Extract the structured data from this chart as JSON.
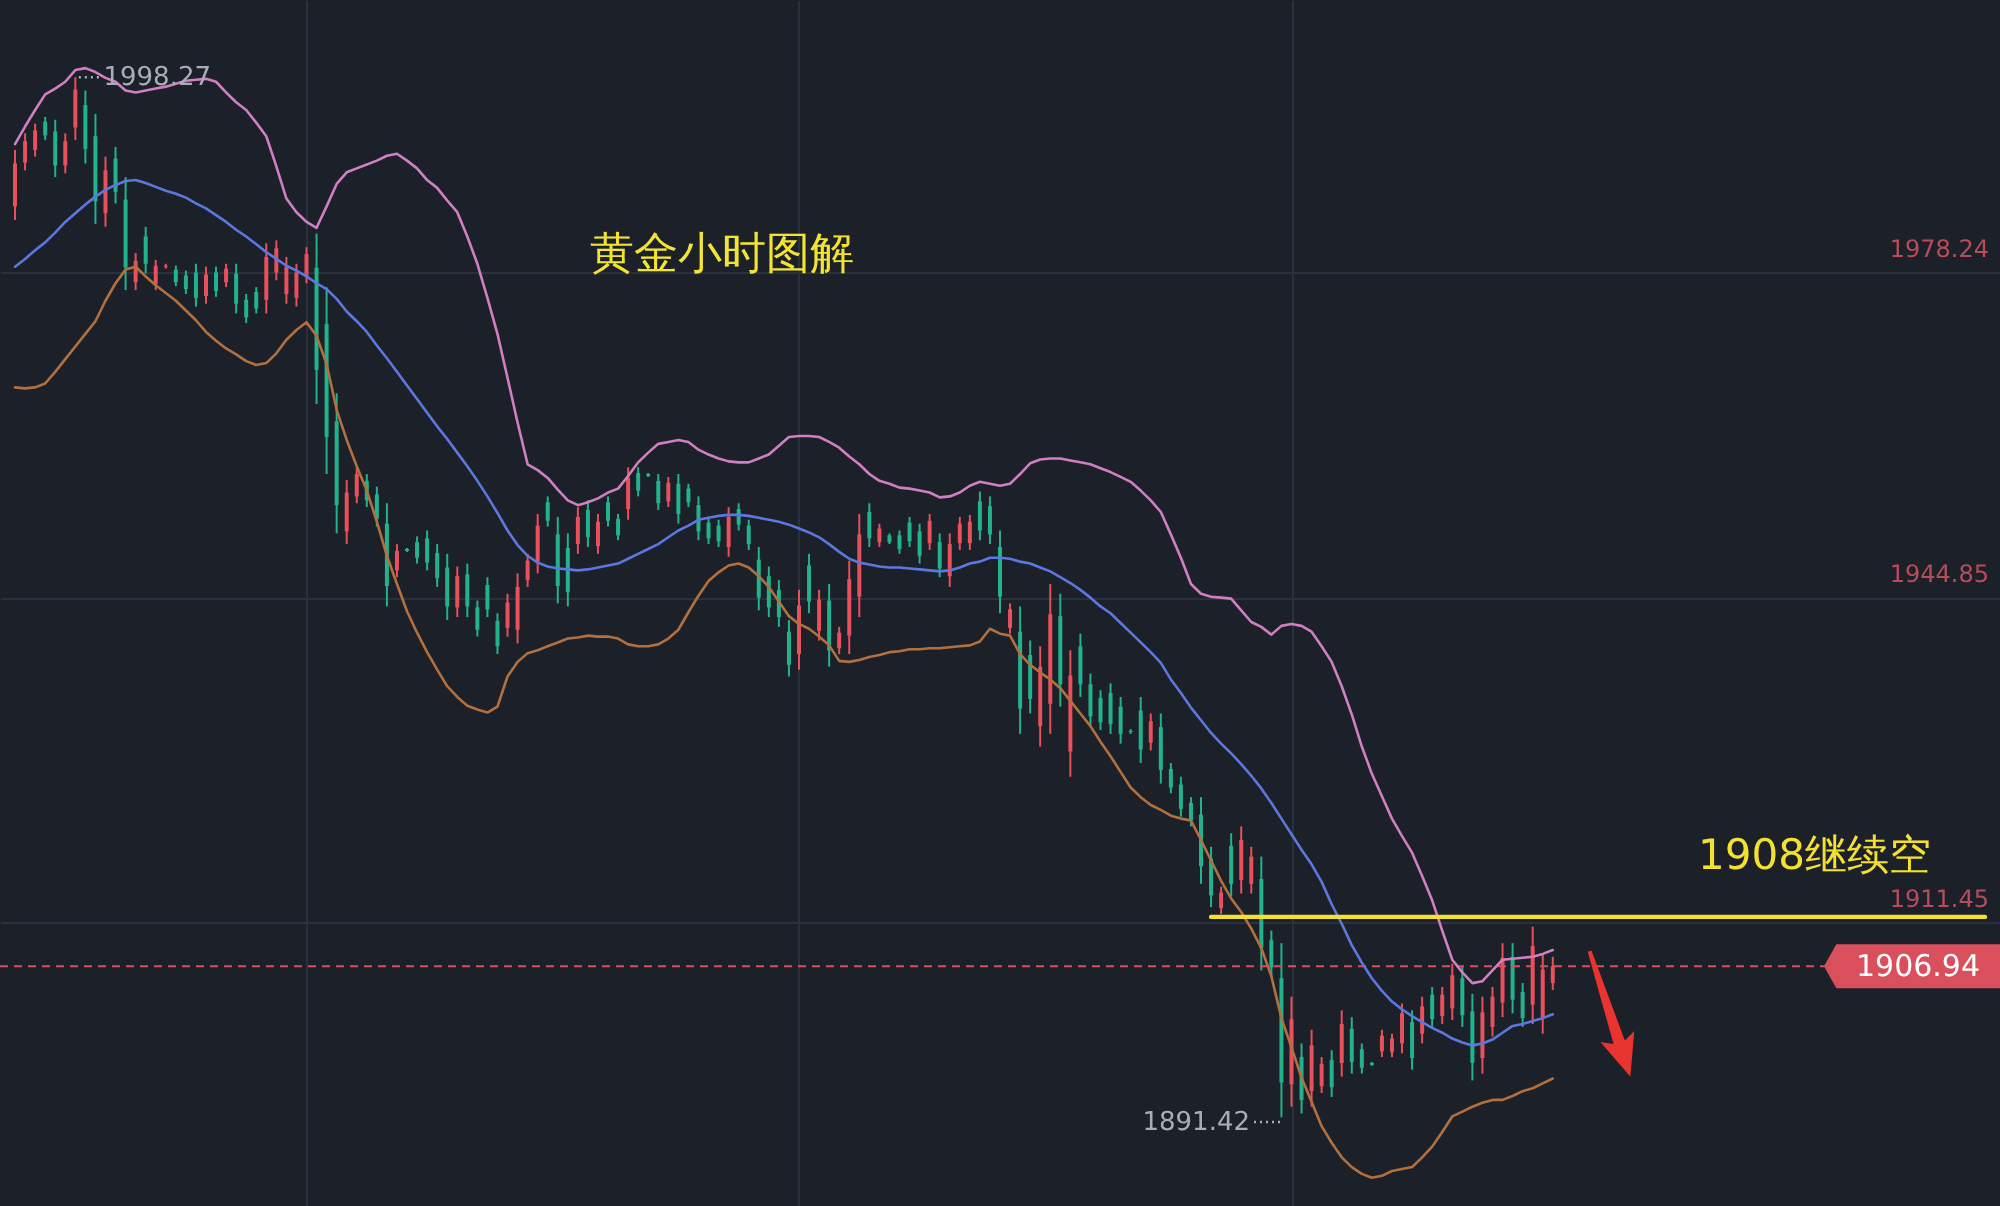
{
  "chart_data": {
    "type": "candlestick",
    "title": "黄金小时图解",
    "categories": [
      null,
      null,
      null,
      null,
      null,
      null,
      null,
      null,
      null,
      null,
      null,
      null,
      null,
      null,
      null,
      null,
      null,
      null,
      null,
      null,
      null,
      null,
      null,
      null,
      null,
      null,
      null,
      null,
      null,
      null,
      null,
      null,
      null,
      null,
      null,
      null,
      null,
      null,
      null,
      null,
      null,
      null,
      null,
      null,
      null,
      null,
      null,
      null,
      null,
      null,
      null,
      null,
      null,
      null,
      null,
      null,
      null,
      null,
      null,
      null,
      null,
      null,
      null,
      null,
      null,
      null,
      null,
      null,
      null,
      null,
      null,
      null,
      null,
      null,
      null,
      null,
      null,
      null,
      null,
      null,
      null,
      null,
      null,
      null,
      null,
      null,
      null,
      null,
      null,
      null,
      null,
      null,
      null,
      null,
      null,
      null,
      null,
      null,
      null,
      null,
      null,
      null,
      null,
      null,
      null,
      null,
      null,
      null,
      null,
      null,
      null,
      null,
      null,
      null,
      null,
      null,
      null,
      null,
      null,
      null,
      null,
      null,
      null,
      null,
      null,
      null,
      null,
      null,
      null,
      null,
      null,
      null,
      null,
      null,
      null,
      null,
      null,
      null,
      null,
      null,
      null,
      null,
      null,
      null,
      null,
      null,
      null,
      null,
      null,
      null,
      null,
      null,
      null,
      null,
      null,
      null,
      null,
      null,
      null,
      null,
      null,
      null,
      null,
      null,
      null,
      null,
      null,
      null,
      null,
      null,
      null,
      null,
      null,
      null,
      null,
      null,
      null,
      null,
      null,
      null,
      null,
      null,
      null,
      null,
      null,
      null,
      null,
      null,
      null,
      null,
      null,
      null,
      null,
      null,
      null,
      null,
      null
    ],
    "ohlc": [
      [
        1985.0,
        1990.8,
        1983.6,
        1989.4
      ],
      [
        1989.5,
        1992.5,
        1988.7,
        1991.7
      ],
      [
        1990.8,
        1993.5,
        1990.1,
        1992.8
      ],
      [
        1993.7,
        1994.2,
        1991.8,
        1992.3
      ],
      [
        1992.7,
        1993.9,
        1988.0,
        1989.2
      ],
      [
        1989.2,
        1992.5,
        1988.4,
        1991.7
      ],
      [
        1993.1,
        1998.27,
        1991.8,
        1997.0
      ],
      [
        1995.4,
        1996.9,
        1989.4,
        1990.9
      ],
      [
        1992.2,
        1994.5,
        1983.2,
        1985.5
      ],
      [
        1984.3,
        1990.1,
        1982.9,
        1988.7
      ],
      [
        1989.9,
        1991.1,
        1985.3,
        1986.5
      ],
      [
        1985.7,
        1988.0,
        1976.4,
        1978.7
      ],
      [
        1977.2,
        1980.2,
        1976.4,
        1979.4
      ],
      [
        1981.9,
        1982.9,
        1978.1,
        1979.1
      ],
      [
        1977.0,
        1979.5,
        1976.4,
        1978.9
      ],
      [
        1978.8,
        1979.1,
        1978.6,
        1978.9
      ],
      [
        1978.5,
        1978.9,
        1976.8,
        1977.2
      ],
      [
        1977.9,
        1978.4,
        1976.0,
        1976.5
      ],
      [
        1978.2,
        1979.1,
        1974.7,
        1975.6
      ],
      [
        1975.8,
        1978.8,
        1975.0,
        1978.0
      ],
      [
        1978.2,
        1978.8,
        1975.7,
        1976.3
      ],
      [
        1977.2,
        1979.1,
        1976.7,
        1978.6
      ],
      [
        1978.1,
        1979.1,
        1974.0,
        1975.0
      ],
      [
        1975.4,
        1976.0,
        1973.0,
        1973.6
      ],
      [
        1976.2,
        1976.7,
        1974.0,
        1974.5
      ],
      [
        1975.4,
        1981.2,
        1974.0,
        1979.8
      ],
      [
        1978.2,
        1981.5,
        1977.4,
        1980.7
      ],
      [
        1976.0,
        1979.8,
        1975.0,
        1978.8
      ],
      [
        1975.6,
        1979.1,
        1974.7,
        1978.2
      ],
      [
        1977.8,
        1980.8,
        1977.1,
        1980.1
      ],
      [
        1978.7,
        1982.2,
        1964.7,
        1968.2
      ],
      [
        1972.9,
        1976.7,
        1957.5,
        1961.3
      ],
      [
        1962.9,
        1965.8,
        1951.4,
        1954.3
      ],
      [
        1951.6,
        1956.9,
        1950.3,
        1955.6
      ],
      [
        1955.2,
        1958.2,
        1954.5,
        1957.5
      ],
      [
        1956.8,
        1957.5,
        1954.1,
        1954.8
      ],
      [
        1955.4,
        1956.2,
        1952.1,
        1952.9
      ],
      [
        1952.4,
        1954.5,
        1943.9,
        1946.0
      ],
      [
        1947.6,
        1950.3,
        1946.9,
        1949.6
      ],
      [
        1949.8,
        1949.9,
        1949.5,
        1949.6
      ],
      [
        1950.5,
        1951.1,
        1948.3,
        1948.9
      ],
      [
        1950.9,
        1951.7,
        1947.6,
        1948.4
      ],
      [
        1949.4,
        1950.3,
        1945.9,
        1946.8
      ],
      [
        1947.9,
        1949.3,
        1942.5,
        1943.9
      ],
      [
        1943.8,
        1948.0,
        1942.8,
        1947.0
      ],
      [
        1947.2,
        1948.3,
        1942.8,
        1943.9
      ],
      [
        1943.8,
        1944.5,
        1940.8,
        1941.5
      ],
      [
        1946.1,
        1946.9,
        1942.8,
        1943.6
      ],
      [
        1942.4,
        1943.2,
        1939.0,
        1939.8
      ],
      [
        1941.7,
        1945.2,
        1940.8,
        1944.3
      ],
      [
        1941.5,
        1947.3,
        1940.1,
        1945.9
      ],
      [
        1946.6,
        1949.3,
        1945.9,
        1948.6
      ],
      [
        1948.5,
        1953.4,
        1947.3,
        1952.2
      ],
      [
        1954.6,
        1955.2,
        1952.1,
        1952.7
      ],
      [
        1951.3,
        1953.1,
        1944.2,
        1946.0
      ],
      [
        1949.9,
        1951.4,
        1943.9,
        1945.4
      ],
      [
        1950.3,
        1954.1,
        1949.3,
        1953.1
      ],
      [
        1953.8,
        1954.8,
        1950.0,
        1951.0
      ],
      [
        1950.1,
        1953.4,
        1949.3,
        1952.6
      ],
      [
        1954.6,
        1955.2,
        1952.1,
        1952.7
      ],
      [
        1952.9,
        1953.4,
        1950.7,
        1951.2
      ],
      [
        1953.9,
        1958.2,
        1952.8,
        1957.1
      ],
      [
        1957.6,
        1958.2,
        1955.2,
        1955.8
      ],
      [
        1957.5,
        1957.6,
        1957.2,
        1957.3
      ],
      [
        1956.8,
        1957.5,
        1953.8,
        1954.5
      ],
      [
        1954.7,
        1957.2,
        1954.1,
        1956.6
      ],
      [
        1956.5,
        1957.5,
        1952.4,
        1953.4
      ],
      [
        1956.0,
        1956.5,
        1954.1,
        1954.6
      ],
      [
        1954.3,
        1955.2,
        1950.7,
        1951.6
      ],
      [
        1952.5,
        1953.1,
        1950.3,
        1950.9
      ],
      [
        1952.2,
        1952.8,
        1950.0,
        1950.6
      ],
      [
        1950.0,
        1954.1,
        1949.0,
        1953.1
      ],
      [
        1953.9,
        1954.5,
        1951.7,
        1952.3
      ],
      [
        1952.2,
        1952.8,
        1949.7,
        1950.3
      ],
      [
        1948.7,
        1950.0,
        1943.5,
        1944.8
      ],
      [
        1947.0,
        1948.0,
        1942.8,
        1943.8
      ],
      [
        1945.6,
        1946.6,
        1941.8,
        1942.8
      ],
      [
        1941.3,
        1942.5,
        1936.7,
        1937.9
      ],
      [
        1939.0,
        1945.6,
        1937.4,
        1944.0
      ],
      [
        1948.1,
        1949.3,
        1943.2,
        1944.4
      ],
      [
        1941.4,
        1945.6,
        1940.4,
        1944.6
      ],
      [
        1944.5,
        1946.2,
        1937.7,
        1939.4
      ],
      [
        1939.6,
        1941.8,
        1939.0,
        1941.2
      ],
      [
        1940.9,
        1948.6,
        1939.0,
        1946.7
      ],
      [
        1944.9,
        1953.4,
        1942.8,
        1951.3
      ],
      [
        1953.6,
        1954.5,
        1950.0,
        1950.9
      ],
      [
        1950.5,
        1952.4,
        1950.0,
        1951.9
      ],
      [
        1951.2,
        1951.4,
        1950.3,
        1950.5
      ],
      [
        1951.2,
        1951.7,
        1949.3,
        1949.8
      ],
      [
        1952.5,
        1953.1,
        1950.0,
        1950.6
      ],
      [
        1951.6,
        1952.4,
        1948.3,
        1949.1
      ],
      [
        1950.4,
        1953.4,
        1949.7,
        1952.7
      ],
      [
        1950.5,
        1951.4,
        1946.9,
        1947.8
      ],
      [
        1947.0,
        1951.4,
        1945.9,
        1950.3
      ],
      [
        1950.4,
        1953.1,
        1949.7,
        1952.4
      ],
      [
        1950.4,
        1953.3,
        1949.7,
        1952.6
      ],
      [
        1954.7,
        1955.7,
        1950.7,
        1951.7
      ],
      [
        1954.2,
        1955.2,
        1950.3,
        1951.3
      ],
      [
        1950.0,
        1951.7,
        1943.2,
        1944.9
      ],
      [
        1941.7,
        1944.2,
        1941.1,
        1943.6
      ],
      [
        1941.3,
        1943.9,
        1930.8,
        1933.4
      ],
      [
        1938.9,
        1940.4,
        1932.9,
        1934.4
      ],
      [
        1931.6,
        1939.8,
        1929.5,
        1937.7
      ],
      [
        1933.9,
        1946.2,
        1930.8,
        1943.1
      ],
      [
        1942.9,
        1945.2,
        1933.6,
        1935.9
      ],
      [
        1929.0,
        1939.4,
        1926.4,
        1936.8
      ],
      [
        1939.8,
        1941.1,
        1934.6,
        1935.9
      ],
      [
        1935.9,
        1937.0,
        1931.5,
        1932.6
      ],
      [
        1934.5,
        1935.3,
        1931.2,
        1932.0
      ],
      [
        1935.0,
        1936.0,
        1930.8,
        1931.8
      ],
      [
        1933.6,
        1934.6,
        1929.8,
        1930.8
      ],
      [
        1931.1,
        1931.3,
        1930.8,
        1931.0
      ],
      [
        1933.2,
        1934.6,
        1927.8,
        1929.2
      ],
      [
        1929.9,
        1932.9,
        1929.1,
        1932.1
      ],
      [
        1931.5,
        1932.9,
        1925.7,
        1927.1
      ],
      [
        1927.2,
        1927.8,
        1924.7,
        1925.3
      ],
      [
        1925.6,
        1926.4,
        1922.3,
        1923.1
      ],
      [
        1923.7,
        1924.3,
        1921.3,
        1921.9
      ],
      [
        1922.5,
        1924.3,
        1915.4,
        1917.2
      ],
      [
        1918.0,
        1919.2,
        1913.0,
        1914.2
      ],
      [
        1912.9,
        1915.1,
        1912.3,
        1914.5
      ],
      [
        1919.3,
        1920.6,
        1914.1,
        1915.4
      ],
      [
        1915.8,
        1921.3,
        1914.4,
        1919.9
      ],
      [
        1915.4,
        1919.2,
        1914.4,
        1918.2
      ],
      [
        1915.9,
        1918.2,
        1906.5,
        1908.8
      ],
      [
        1909.6,
        1910.6,
        1905.8,
        1906.8
      ],
      [
        1905.7,
        1909.3,
        1891.42,
        1895.0
      ],
      [
        1894.8,
        1903.8,
        1892.5,
        1901.5
      ],
      [
        1897.6,
        1899.0,
        1891.8,
        1893.2
      ],
      [
        1894.1,
        1900.4,
        1892.5,
        1898.8
      ],
      [
        1894.6,
        1897.6,
        1893.9,
        1896.9
      ],
      [
        1897.3,
        1898.3,
        1893.5,
        1894.5
      ],
      [
        1897.0,
        1902.4,
        1895.6,
        1901.0
      ],
      [
        1900.5,
        1901.7,
        1895.9,
        1897.1
      ],
      [
        1898.4,
        1899.0,
        1895.9,
        1896.5
      ],
      [
        1897.0,
        1897.1,
        1896.7,
        1896.8
      ],
      [
        1898.2,
        1900.4,
        1897.6,
        1899.8
      ],
      [
        1898.1,
        1900.0,
        1897.6,
        1899.5
      ],
      [
        1899.0,
        1903.1,
        1898.0,
        1902.1
      ],
      [
        1901.2,
        1902.4,
        1896.3,
        1897.5
      ],
      [
        1900.0,
        1903.8,
        1899.0,
        1902.8
      ],
      [
        1904.0,
        1904.8,
        1900.7,
        1901.5
      ],
      [
        1901.8,
        1904.8,
        1901.0,
        1904.0
      ],
      [
        1902.6,
        1907.2,
        1901.4,
        1906.0
      ],
      [
        1905.7,
        1906.9,
        1900.7,
        1901.9
      ],
      [
        1902.3,
        1904.1,
        1895.2,
        1897.0
      ],
      [
        1897.5,
        1903.8,
        1895.9,
        1902.2
      ],
      [
        1900.7,
        1904.8,
        1899.7,
        1903.8
      ],
      [
        1903.2,
        1909.3,
        1901.7,
        1907.8
      ],
      [
        1907.9,
        1909.3,
        1902.1,
        1903.5
      ],
      [
        1904.3,
        1905.2,
        1900.7,
        1901.6
      ],
      [
        1903.0,
        1911.0,
        1901.0,
        1909.0
      ],
      [
        1901.6,
        1908.2,
        1900.0,
        1906.6
      ],
      [
        1905.2,
        1907.9,
        1904.5,
        1906.94
      ],
      null,
      null,
      null,
      null,
      null,
      null,
      null,
      null,
      null,
      null,
      null,
      null,
      null,
      null,
      null,
      null,
      null,
      null,
      null,
      null,
      null,
      null,
      null,
      null,
      null,
      null,
      null,
      null,
      null,
      null,
      null,
      null,
      null,
      null,
      null,
      null,
      null,
      null,
      null,
      null,
      null,
      null,
      null
    ],
    "colors": [
      "#e8505b",
      "#e8505b",
      "#e8505b",
      "#22b38d",
      "#22b38d",
      "#e8505b",
      "#e8505b",
      "#22b38d",
      "#22b38d",
      "#e8505b",
      "#22b38d",
      "#22b38d",
      "#e8505b",
      "#22b38d",
      "#e8505b",
      "#e8505b",
      "#22b38d",
      "#22b38d",
      "#22b38d",
      "#e8505b",
      "#22b38d",
      "#e8505b",
      "#22b38d",
      "#22b38d",
      "#22b38d",
      "#e8505b",
      "#e8505b",
      "#e8505b",
      "#e8505b",
      "#e8505b",
      "#22b38d",
      "#22b38d",
      "#22b38d",
      "#e8505b",
      "#e8505b",
      "#22b38d",
      "#22b38d",
      "#22b38d",
      "#e8505b",
      "#22b38d",
      "#22b38d",
      "#22b38d",
      "#22b38d",
      "#22b38d",
      "#e8505b",
      "#22b38d",
      "#22b38d",
      "#22b38d",
      "#22b38d",
      "#e8505b",
      "#e8505b",
      "#e8505b",
      "#e8505b",
      "#22b38d",
      "#22b38d",
      "#22b38d",
      "#e8505b",
      "#22b38d",
      "#e8505b",
      "#22b38d",
      "#22b38d",
      "#e8505b",
      "#22b38d",
      "#22b38d",
      "#22b38d",
      "#e8505b",
      "#22b38d",
      "#22b38d",
      "#22b38d",
      "#22b38d",
      "#22b38d",
      "#e8505b",
      "#22b38d",
      "#22b38d",
      "#22b38d",
      "#22b38d",
      "#22b38d",
      "#22b38d",
      "#e8505b",
      "#22b38d",
      "#e8505b",
      "#22b38d",
      "#e8505b",
      "#e8505b",
      "#e8505b",
      "#22b38d",
      "#e8505b",
      "#22b38d",
      "#22b38d",
      "#22b38d",
      "#22b38d",
      "#e8505b",
      "#22b38d",
      "#e8505b",
      "#e8505b",
      "#e8505b",
      "#22b38d",
      "#22b38d",
      "#22b38d",
      "#e8505b",
      "#22b38d",
      "#22b38d",
      "#e8505b",
      "#e8505b",
      "#22b38d",
      "#e8505b",
      "#22b38d",
      "#22b38d",
      "#22b38d",
      "#22b38d",
      "#22b38d",
      "#22b38d",
      "#22b38d",
      "#e8505b",
      "#22b38d",
      "#22b38d",
      "#22b38d",
      "#22b38d",
      "#22b38d",
      "#22b38d",
      "#e8505b",
      "#22b38d",
      "#e8505b",
      "#e8505b",
      "#22b38d",
      "#22b38d",
      "#22b38d",
      "#e8505b",
      "#22b38d",
      "#e8505b",
      "#e8505b",
      "#22b38d",
      "#e8505b",
      "#22b38d",
      "#22b38d",
      "#22b38d",
      "#e8505b",
      "#e8505b",
      "#e8505b",
      "#22b38d",
      "#e8505b",
      "#22b38d",
      "#e8505b",
      "#e8505b",
      "#22b38d",
      "#22b38d",
      "#e8505b",
      "#e8505b",
      "#e8505b",
      "#22b38d",
      "#22b38d",
      "#e8505b",
      "#e8505b",
      "#e8505b",
      null,
      null,
      null,
      null,
      null,
      null,
      null,
      null,
      null,
      null,
      null,
      null,
      null,
      null,
      null,
      null,
      null,
      null,
      null,
      null,
      null,
      null,
      null,
      null,
      null,
      null,
      null,
      null,
      null,
      null,
      null,
      null,
      null,
      null,
      null,
      null,
      null,
      null,
      null,
      null,
      null,
      null,
      null
    ],
    "series": [
      {
        "type": "line",
        "color": "#d07fc2",
        "values": [
          1991.4,
          1993.2,
          1994.9,
          1996.5,
          1997.1,
          1997.8,
          1999.0,
          1999.2,
          1998.8,
          1998.2,
          1997.8,
          1996.9,
          1996.7,
          1996.9,
          1997.1,
          1997.3,
          1997.6,
          1997.9,
          1998.0,
          1998.1,
          1997.8,
          1996.7,
          1995.7,
          1994.9,
          1993.6,
          1992.2,
          1989.1,
          1985.8,
          1984.4,
          1983.4,
          1982.8,
          1985.0,
          1987.3,
          1988.5,
          1988.9,
          1989.3,
          1989.7,
          1990.2,
          1990.4,
          1989.7,
          1988.9,
          1987.7,
          1986.9,
          1985.6,
          1984.4,
          1981.9,
          1979.1,
          1975.6,
          1971.9,
          1967.4,
          1962.8,
          1958.5,
          1957.9,
          1957.1,
          1955.9,
          1954.8,
          1954.3,
          1954.6,
          1955.0,
          1955.6,
          1956.0,
          1957.3,
          1958.7,
          1959.7,
          1960.6,
          1960.8,
          1961.0,
          1960.8,
          1960.0,
          1959.5,
          1959.1,
          1958.8,
          1958.7,
          1958.7,
          1959.1,
          1959.5,
          1960.4,
          1961.3,
          1961.4,
          1961.4,
          1961.3,
          1960.8,
          1960.2,
          1959.3,
          1958.5,
          1957.5,
          1956.8,
          1956.5,
          1956.1,
          1956.0,
          1955.8,
          1955.6,
          1955.1,
          1955.2,
          1955.6,
          1956.3,
          1956.7,
          1956.5,
          1956.3,
          1956.5,
          1957.5,
          1958.6,
          1959.0,
          1959.1,
          1959.1,
          1958.9,
          1958.7,
          1958.5,
          1958.1,
          1957.7,
          1957.2,
          1956.7,
          1955.8,
          1954.8,
          1953.6,
          1951.3,
          1948.9,
          1946.2,
          1945.2,
          1944.9,
          1944.8,
          1944.7,
          1943.5,
          1942.3,
          1941.8,
          1941.0,
          1941.9,
          1942.1,
          1941.9,
          1941.3,
          1939.8,
          1938.2,
          1935.7,
          1932.8,
          1929.5,
          1926.7,
          1924.4,
          1922.1,
          1920.3,
          1918.6,
          1916.2,
          1913.7,
          1910.6,
          1907.6,
          1906.3,
          1905.2,
          1905.4,
          1906.5,
          1907.6,
          1907.7,
          1907.8,
          1907.9,
          1908.2,
          1908.6,
          null,
          null,
          null,
          null,
          null,
          null,
          null,
          null,
          null,
          null,
          null,
          null,
          null,
          null,
          null,
          null,
          null,
          null,
          null,
          null,
          null,
          null,
          null,
          null,
          null,
          null,
          null,
          null,
          null,
          null,
          null,
          null,
          null,
          null,
          null,
          null,
          null,
          null,
          null,
          null,
          null,
          null,
          null
        ]
      },
      {
        "type": "line",
        "color": "#5b78e0",
        "values": [
          1978.8,
          1979.6,
          1980.5,
          1981.3,
          1982.3,
          1983.4,
          1984.3,
          1985.2,
          1986.0,
          1986.7,
          1987.2,
          1987.6,
          1987.7,
          1987.4,
          1987.0,
          1986.6,
          1986.3,
          1985.9,
          1985.3,
          1984.8,
          1984.1,
          1983.4,
          1982.6,
          1981.9,
          1981.1,
          1980.3,
          1979.6,
          1978.9,
          1978.4,
          1977.8,
          1977.1,
          1976.5,
          1975.5,
          1974.2,
          1973.2,
          1972.1,
          1970.7,
          1969.4,
          1968.0,
          1966.6,
          1965.2,
          1963.8,
          1962.4,
          1961.1,
          1959.7,
          1958.3,
          1956.8,
          1955.2,
          1953.5,
          1951.7,
          1950.2,
          1949.1,
          1948.4,
          1948.0,
          1947.8,
          1947.7,
          1947.6,
          1947.7,
          1947.9,
          1948.1,
          1948.3,
          1948.8,
          1949.3,
          1949.8,
          1950.3,
          1951.0,
          1951.7,
          1952.2,
          1952.8,
          1953.0,
          1953.2,
          1953.3,
          1953.3,
          1953.2,
          1953.0,
          1952.8,
          1952.6,
          1952.3,
          1951.9,
          1951.5,
          1951.0,
          1950.3,
          1949.5,
          1948.8,
          1948.4,
          1948.2,
          1948.0,
          1947.9,
          1947.9,
          1947.8,
          1947.7,
          1947.6,
          1947.5,
          1947.6,
          1947.9,
          1948.3,
          1948.5,
          1948.9,
          1948.9,
          1948.8,
          1948.5,
          1948.3,
          1947.9,
          1947.5,
          1946.9,
          1946.3,
          1945.6,
          1944.8,
          1943.9,
          1943.2,
          1942.2,
          1941.2,
          1940.2,
          1939.2,
          1938.1,
          1936.4,
          1935.0,
          1933.5,
          1932.2,
          1930.9,
          1929.8,
          1928.8,
          1927.7,
          1926.5,
          1925.2,
          1923.7,
          1922.1,
          1920.5,
          1918.9,
          1917.4,
          1915.6,
          1913.3,
          1911.3,
          1909.1,
          1907.3,
          1905.7,
          1904.4,
          1903.3,
          1902.5,
          1901.8,
          1901.2,
          1900.6,
          1900.1,
          1899.5,
          1899.1,
          1898.8,
          1899.0,
          1899.4,
          1900.1,
          1900.8,
          1901.0,
          1901.3,
          1901.6,
          1902.0,
          null,
          null,
          null,
          null,
          null,
          null,
          null,
          null,
          null,
          null,
          null,
          null,
          null,
          null,
          null,
          null,
          null,
          null,
          null,
          null,
          null,
          null,
          null,
          null,
          null,
          null,
          null,
          null,
          null,
          null,
          null,
          null,
          null,
          null,
          null,
          null,
          null,
          null,
          null,
          null,
          null,
          null,
          null
        ]
      },
      {
        "type": "line",
        "color": "#b2703f",
        "values": [
          1966.4,
          1966.3,
          1966.4,
          1966.8,
          1968.0,
          1969.3,
          1970.6,
          1971.9,
          1973.2,
          1975.3,
          1977.1,
          1978.5,
          1978.8,
          1977.8,
          1976.9,
          1976.1,
          1975.3,
          1974.3,
          1973.3,
          1972.1,
          1971.2,
          1970.4,
          1969.8,
          1969.1,
          1968.7,
          1968.9,
          1969.9,
          1971.3,
          1972.3,
          1973.1,
          1971.7,
          1968.8,
          1964.1,
          1961.0,
          1958.3,
          1955.8,
          1952.6,
          1949.1,
          1946.2,
          1943.4,
          1941.2,
          1939.2,
          1937.4,
          1935.7,
          1934.6,
          1933.7,
          1933.3,
          1933.0,
          1933.6,
          1936.7,
          1938.2,
          1939.1,
          1939.4,
          1939.8,
          1940.2,
          1940.6,
          1940.7,
          1940.9,
          1940.8,
          1940.8,
          1940.6,
          1940.0,
          1939.8,
          1939.8,
          1940.0,
          1940.6,
          1941.5,
          1943.3,
          1945.0,
          1946.5,
          1947.4,
          1948.1,
          1948.3,
          1947.9,
          1947.0,
          1945.9,
          1944.4,
          1942.9,
          1942.1,
          1941.6,
          1940.8,
          1939.9,
          1938.3,
          1938.2,
          1938.4,
          1938.7,
          1938.9,
          1939.2,
          1939.3,
          1939.5,
          1939.5,
          1939.6,
          1939.6,
          1939.7,
          1939.8,
          1939.9,
          1940.3,
          1941.6,
          1941.1,
          1940.9,
          1939.0,
          1937.9,
          1937.1,
          1936.4,
          1935.5,
          1934.2,
          1932.9,
          1931.6,
          1930.0,
          1928.5,
          1926.9,
          1925.3,
          1924.3,
          1923.5,
          1923.0,
          1922.4,
          1922.1,
          1921.9,
          1919.9,
          1917.8,
          1915.7,
          1913.9,
          1912.5,
          1910.8,
          1908.8,
          1905.9,
          1901.6,
          1898.6,
          1895.5,
          1893.0,
          1890.5,
          1888.8,
          1887.3,
          1886.3,
          1885.6,
          1885.2,
          1885.4,
          1885.9,
          1886.1,
          1886.3,
          1887.3,
          1888.4,
          1889.9,
          1891.5,
          1892.0,
          1892.5,
          1892.9,
          1893.2,
          1893.2,
          1893.6,
          1894.1,
          1894.4,
          1894.9,
          1895.4,
          null,
          null,
          null,
          null,
          null,
          null,
          null,
          null,
          null,
          null,
          null,
          null,
          null,
          null,
          null,
          null,
          null,
          null,
          null,
          null,
          null,
          null,
          null,
          null,
          null,
          null,
          null,
          null,
          null,
          null,
          null,
          null,
          null,
          null,
          null,
          null,
          null,
          null,
          null,
          null,
          null,
          null,
          null
        ]
      },
      {
        "type": "line",
        "name": "1908继续空",
        "color": "#f4e12f",
        "values": [
          null,
          null,
          null,
          null,
          null,
          null,
          null,
          null,
          null,
          null,
          null,
          null,
          null,
          null,
          null,
          null,
          null,
          null,
          null,
          null,
          null,
          null,
          null,
          null,
          null,
          null,
          null,
          null,
          null,
          null,
          null,
          null,
          null,
          null,
          null,
          null,
          null,
          null,
          null,
          null,
          null,
          null,
          null,
          null,
          null,
          null,
          null,
          null,
          null,
          null,
          null,
          null,
          null,
          null,
          null,
          null,
          null,
          null,
          null,
          null,
          null,
          null,
          null,
          null,
          null,
          null,
          null,
          null,
          null,
          null,
          null,
          null,
          null,
          null,
          null,
          null,
          null,
          null,
          null,
          null,
          null,
          null,
          null,
          null,
          null,
          null,
          null,
          null,
          null,
          null,
          null,
          null,
          null,
          null,
          null,
          null,
          null,
          null,
          null,
          null,
          null,
          null,
          null,
          null,
          null,
          null,
          null,
          null,
          null,
          null,
          null,
          null,
          null,
          null,
          null,
          null,
          null,
          null,
          null,
          1912,
          1912,
          1912,
          1912,
          1912,
          1912,
          1912,
          1912,
          1912,
          1912,
          1912,
          1912,
          1912,
          1912,
          1912,
          1912,
          1912,
          1912,
          1912,
          1912,
          1912,
          1912,
          1912,
          1912,
          1912,
          1912,
          1912,
          1912,
          1912,
          1912,
          1912,
          1912,
          1912,
          1912,
          1912,
          1912,
          1912,
          1912,
          1912,
          1912,
          1912,
          1912,
          1912,
          1912,
          1912,
          1912,
          1912,
          1912,
          1912,
          1912,
          1912,
          1912,
          1912,
          1912,
          1912,
          1912,
          1912,
          1912,
          1912,
          1912,
          1912,
          1912,
          1912,
          1912,
          1912,
          1912,
          1912,
          1912,
          1912,
          1912,
          1912,
          1912,
          1912,
          1912,
          1912,
          1912,
          1912,
          1912
        ]
      }
    ],
    "ref_lines": [
      {
        "axis": "y",
        "value": 1906.94,
        "label": "1906.94",
        "color": "#d9505c",
        "line_style": "dashed"
      }
    ],
    "annotations": [
      {
        "text": "1998.27",
        "y": 1998.27
      },
      "1891.42"
    ],
    "ylim": [
      1882.3,
      2006.2
    ],
    "yticks": [
      1978.24,
      1944.85,
      1911.45
    ],
    "grid": true,
    "tick_labels": "y"
  }
}
